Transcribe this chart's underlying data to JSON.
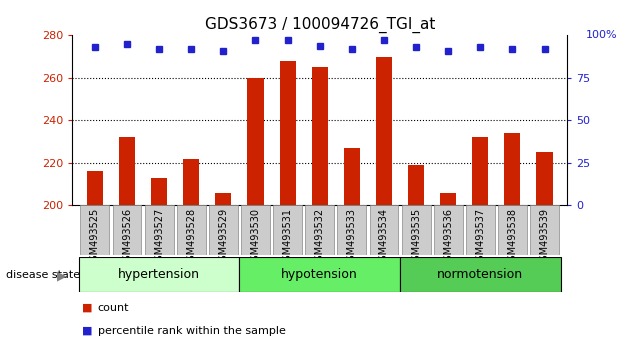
{
  "title": "GDS3673 / 100094726_TGI_at",
  "samples": [
    "GSM493525",
    "GSM493526",
    "GSM493527",
    "GSM493528",
    "GSM493529",
    "GSM493530",
    "GSM493531",
    "GSM493532",
    "GSM493533",
    "GSM493534",
    "GSM493535",
    "GSM493536",
    "GSM493537",
    "GSM493538",
    "GSM493539"
  ],
  "counts": [
    216,
    232,
    213,
    222,
    206,
    260,
    268,
    265,
    227,
    270,
    219,
    206,
    232,
    234,
    225
  ],
  "percentiles": [
    93,
    95,
    92,
    92,
    91,
    97,
    97,
    94,
    92,
    97,
    93,
    91,
    93,
    92,
    92
  ],
  "groups": [
    {
      "label": "hypertension",
      "start": 0,
      "end": 5
    },
    {
      "label": "hypotension",
      "start": 5,
      "end": 10
    },
    {
      "label": "normotension",
      "start": 10,
      "end": 15
    }
  ],
  "bar_color": "#cc2200",
  "dot_color": "#2222cc",
  "ylim_left": [
    200,
    280
  ],
  "ylim_right": [
    0,
    100
  ],
  "yticks_left": [
    200,
    220,
    240,
    260,
    280
  ],
  "yticks_right": [
    0,
    25,
    50,
    75,
    100
  ],
  "grid_values": [
    220,
    240,
    260
  ],
  "group_colors": [
    "#ccffcc",
    "#66ee66",
    "#55cc55"
  ],
  "bar_width": 0.5,
  "disease_state_label": "disease state",
  "legend_count_label": "count",
  "legend_pct_label": "percentile rank within the sample",
  "tick_bg_color": "#cccccc",
  "title_fontsize": 11,
  "axis_fontsize": 8,
  "label_fontsize": 9
}
